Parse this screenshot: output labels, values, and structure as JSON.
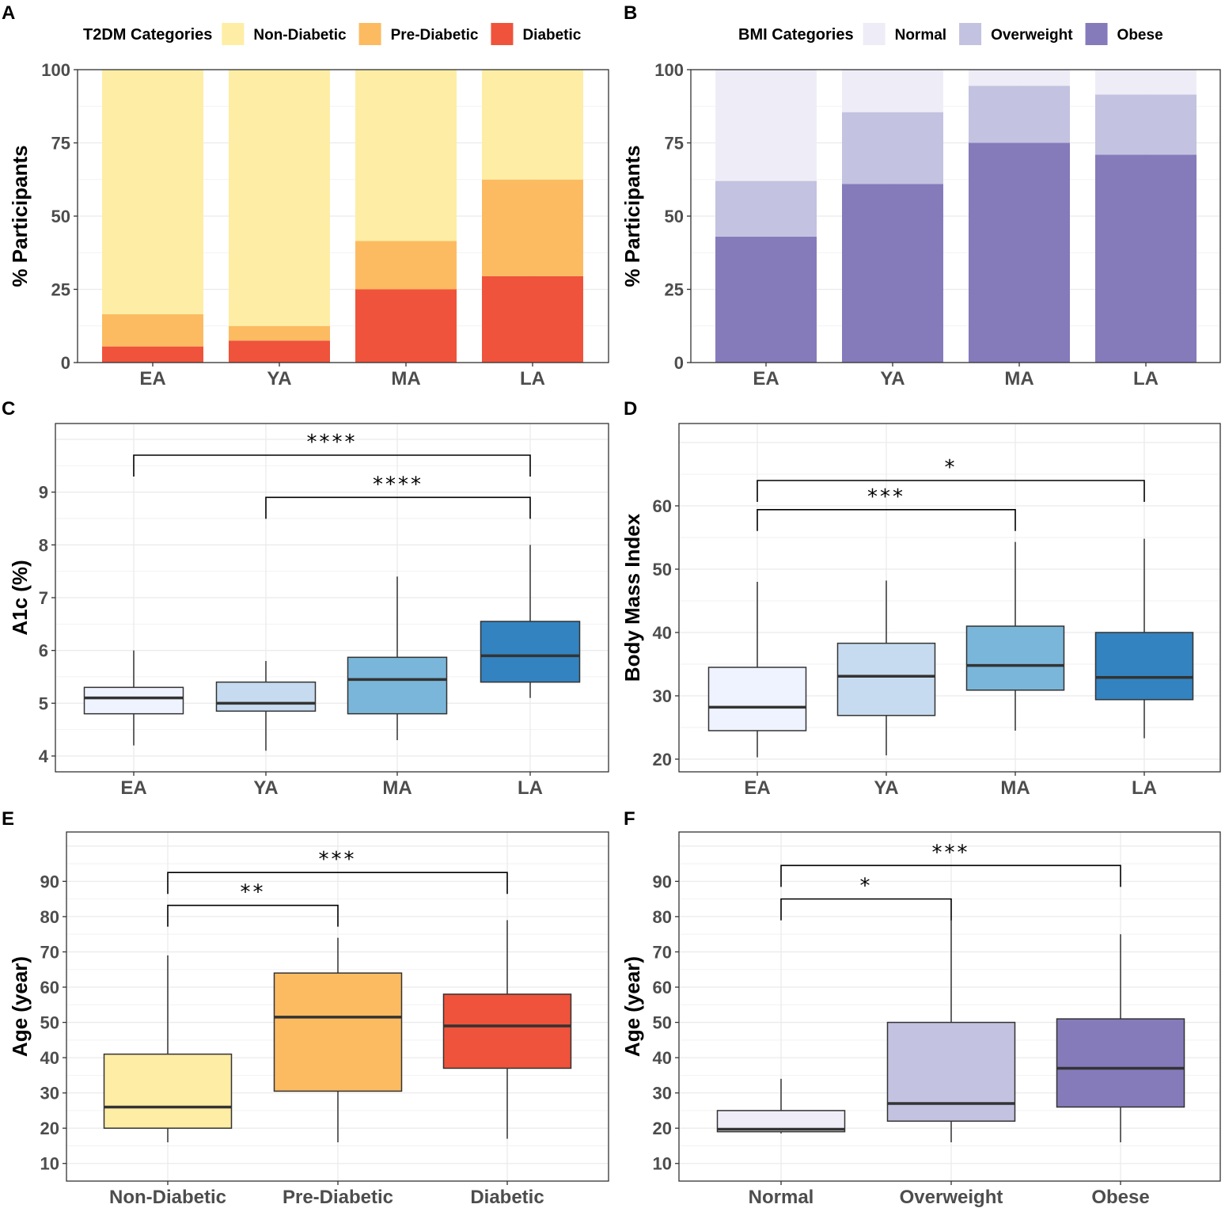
{
  "panels": {
    "A": "A",
    "B": "B",
    "C": "C",
    "D": "D",
    "E": "E",
    "F": "F"
  },
  "chart_data": [
    {
      "id": "A",
      "type": "bar",
      "stacked": true,
      "legend_title": "T2DM Categories",
      "legend_position": "top",
      "categories": [
        "EA",
        "YA",
        "MA",
        "LA"
      ],
      "ylabel": "% Participants",
      "xlabel": "",
      "ylim": [
        0,
        100
      ],
      "yticks": [
        0,
        25,
        50,
        75,
        100
      ],
      "series": [
        {
          "name": "Diabetic",
          "color": "#ef533b",
          "values": [
            5.5,
            7.5,
            25,
            29.5
          ]
        },
        {
          "name": "Pre-Diabetic",
          "color": "#fcbb61",
          "values": [
            11,
            5,
            16.5,
            33
          ]
        },
        {
          "name": "Non-Diabetic",
          "color": "#feeda5",
          "values": [
            83.5,
            87.5,
            58.5,
            37.5
          ]
        }
      ],
      "legend_order": [
        "Non-Diabetic",
        "Pre-Diabetic",
        "Diabetic"
      ]
    },
    {
      "id": "B",
      "type": "bar",
      "stacked": true,
      "legend_title": "BMI Categories",
      "legend_position": "top",
      "categories": [
        "EA",
        "YA",
        "MA",
        "LA"
      ],
      "ylabel": "% Participants",
      "xlabel": "",
      "ylim": [
        0,
        100
      ],
      "yticks": [
        0,
        25,
        50,
        75,
        100
      ],
      "series": [
        {
          "name": "Obese",
          "color": "#857bbb",
          "values": [
            43,
            61,
            75,
            71
          ]
        },
        {
          "name": "Overweight",
          "color": "#c3c2e0",
          "values": [
            19,
            24.5,
            19.5,
            20.5
          ]
        },
        {
          "name": "Normal",
          "color": "#eeedf7",
          "values": [
            38,
            14.5,
            5.5,
            8.5
          ]
        }
      ],
      "legend_order": [
        "Normal",
        "Overweight",
        "Obese"
      ]
    },
    {
      "id": "C",
      "type": "boxplot",
      "categories": [
        "EA",
        "YA",
        "MA",
        "LA"
      ],
      "ylabel": "A1c (%)",
      "xlabel": "",
      "ylim": [
        3.7,
        10.3
      ],
      "yticks": [
        4,
        5,
        6,
        7,
        8,
        9
      ],
      "boxes": [
        {
          "min": 4.2,
          "q1": 4.8,
          "median": 5.1,
          "q3": 5.3,
          "max": 6.0,
          "color": "#eff3ff"
        },
        {
          "min": 4.1,
          "q1": 4.85,
          "median": 5.0,
          "q3": 5.4,
          "max": 5.8,
          "color": "#c6dbef"
        },
        {
          "min": 4.3,
          "q1": 4.8,
          "median": 5.45,
          "q3": 5.87,
          "max": 7.4,
          "color": "#7ab6d9"
        },
        {
          "min": 5.1,
          "q1": 5.4,
          "median": 5.9,
          "q3": 6.55,
          "max": 8.0,
          "color": "#3383c0"
        }
      ],
      "annotations": [
        {
          "from": 0,
          "to": 3,
          "label": "****",
          "y": 9.7
        },
        {
          "from": 1,
          "to": 3,
          "label": "****",
          "y": 8.9
        }
      ]
    },
    {
      "id": "D",
      "type": "boxplot",
      "categories": [
        "EA",
        "YA",
        "MA",
        "LA"
      ],
      "ylabel": "Body Mass Index",
      "xlabel": "",
      "ylim": [
        18,
        73
      ],
      "yticks": [
        20,
        30,
        40,
        50,
        60
      ],
      "boxes": [
        {
          "min": 20.3,
          "q1": 24.5,
          "median": 28.2,
          "q3": 34.5,
          "max": 48.0,
          "color": "#eff3ff"
        },
        {
          "min": 20.6,
          "q1": 26.9,
          "median": 33.1,
          "q3": 38.3,
          "max": 48.2,
          "color": "#c6dbef"
        },
        {
          "min": 24.5,
          "q1": 30.9,
          "median": 34.8,
          "q3": 41.0,
          "max": 54.3,
          "color": "#7ab6d9"
        },
        {
          "min": 23.3,
          "q1": 29.4,
          "median": 32.9,
          "q3": 40.0,
          "max": 54.8,
          "color": "#3383c0"
        }
      ],
      "annotations": [
        {
          "from": 0,
          "to": 3,
          "label": "*",
          "y": 64.0
        },
        {
          "from": 0,
          "to": 2,
          "label": "***",
          "y": 59.4
        }
      ]
    },
    {
      "id": "E",
      "type": "boxplot",
      "categories": [
        "Non-Diabetic",
        "Pre-Diabetic",
        "Diabetic"
      ],
      "ylabel": "Age (year)",
      "xlabel": "",
      "ylim": [
        5,
        104
      ],
      "yticks": [
        10,
        20,
        30,
        40,
        50,
        60,
        70,
        80,
        90
      ],
      "boxes": [
        {
          "min": 16,
          "q1": 20,
          "median": 26,
          "q3": 41,
          "max": 69,
          "color": "#feeda5"
        },
        {
          "min": 16,
          "q1": 30.5,
          "median": 51.5,
          "q3": 64,
          "max": 74,
          "color": "#fcbb61"
        },
        {
          "min": 17,
          "q1": 37,
          "median": 49,
          "q3": 58,
          "max": 79,
          "color": "#ef533b"
        }
      ],
      "annotations": [
        {
          "from": 0,
          "to": 2,
          "label": "***",
          "y": 92.5
        },
        {
          "from": 0,
          "to": 1,
          "label": "**",
          "y": 83.2
        }
      ]
    },
    {
      "id": "F",
      "type": "boxplot",
      "categories": [
        "Normal",
        "Overweight",
        "Obese"
      ],
      "ylabel": "Age (year)",
      "xlabel": "",
      "ylim": [
        5,
        104
      ],
      "yticks": [
        10,
        20,
        30,
        40,
        50,
        60,
        70,
        80,
        90
      ],
      "boxes": [
        {
          "min": 18.5,
          "q1": 19,
          "median": 19.7,
          "q3": 25,
          "max": 34,
          "color": "#eeedf7"
        },
        {
          "min": 16,
          "q1": 22,
          "median": 27,
          "q3": 50,
          "max": 79,
          "color": "#c3c2e0"
        },
        {
          "min": 16,
          "q1": 26,
          "median": 37,
          "q3": 51,
          "max": 75,
          "color": "#857bbb"
        }
      ],
      "annotations": [
        {
          "from": 0,
          "to": 2,
          "label": "***",
          "y": 94.5
        },
        {
          "from": 0,
          "to": 1,
          "label": "*",
          "y": 85.0
        }
      ]
    }
  ]
}
